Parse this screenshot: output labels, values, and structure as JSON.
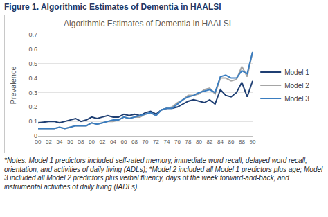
{
  "caption": "Figure 1. Algorithmic Estimates of Dementia in HAALSI",
  "notes": "*Notes. Model 1 predictors included self-rated memory, immediate word recall, delayed word recall, orientation, and activities of daily living (ADLs); *Model 2 included all Model 1 predictors plus age; Model 3 included all Model 2 predictors plus verbal fluency, days of the week forward-and-back, and instrumental activities of daily living (IADLs).",
  "chart_data": {
    "type": "line",
    "title": "Algorithmic Estimates of Dementia in HAALSI",
    "y_label": "Prevalence",
    "x": [
      50,
      51,
      52,
      53,
      54,
      55,
      56,
      57,
      58,
      59,
      60,
      61,
      62,
      63,
      64,
      65,
      66,
      67,
      68,
      69,
      70,
      71,
      72,
      73,
      74,
      75,
      76,
      77,
      78,
      79,
      80,
      81,
      82,
      83,
      84,
      85,
      86,
      87,
      88,
      89,
      90
    ],
    "series": [
      {
        "name": "Model 1",
        "color": "#1f3f73",
        "values": [
          0.09,
          0.095,
          0.1,
          0.1,
          0.09,
          0.1,
          0.11,
          0.12,
          0.1,
          0.11,
          0.13,
          0.12,
          0.13,
          0.14,
          0.13,
          0.13,
          0.15,
          0.14,
          0.15,
          0.14,
          0.16,
          0.17,
          0.15,
          0.18,
          0.19,
          0.19,
          0.2,
          0.22,
          0.24,
          0.25,
          0.24,
          0.23,
          0.25,
          0.22,
          0.32,
          0.28,
          0.27,
          0.3,
          0.37,
          0.27,
          0.38
        ]
      },
      {
        "name": "Model 2",
        "color": "#a5a5a5",
        "values": [
          0.05,
          0.05,
          0.05,
          0.05,
          0.06,
          0.05,
          0.06,
          0.07,
          0.07,
          0.07,
          0.09,
          0.08,
          0.09,
          0.1,
          0.1,
          0.11,
          0.13,
          0.12,
          0.13,
          0.13,
          0.15,
          0.16,
          0.14,
          0.18,
          0.19,
          0.2,
          0.23,
          0.25,
          0.28,
          0.28,
          0.29,
          0.32,
          0.33,
          0.29,
          0.4,
          0.4,
          0.38,
          0.39,
          0.48,
          0.41,
          0.58
        ]
      },
      {
        "name": "Model 3",
        "color": "#3a7dc0",
        "values": [
          0.05,
          0.05,
          0.05,
          0.05,
          0.06,
          0.05,
          0.06,
          0.07,
          0.07,
          0.07,
          0.09,
          0.08,
          0.09,
          0.1,
          0.11,
          0.11,
          0.13,
          0.12,
          0.13,
          0.14,
          0.15,
          0.16,
          0.14,
          0.18,
          0.19,
          0.19,
          0.22,
          0.25,
          0.27,
          0.28,
          0.3,
          0.31,
          0.32,
          0.3,
          0.41,
          0.42,
          0.4,
          0.4,
          0.45,
          0.43,
          0.58
        ]
      }
    ],
    "xlim": [
      50,
      90
    ],
    "xticks": [
      50,
      52,
      54,
      56,
      58,
      60,
      62,
      64,
      66,
      68,
      70,
      72,
      74,
      76,
      78,
      80,
      82,
      84,
      86,
      88,
      90
    ],
    "ylim": [
      0,
      0.7
    ],
    "yticks": [
      0,
      0.1,
      0.2,
      0.3,
      0.4,
      0.5,
      0.6,
      0.7
    ],
    "grid": true,
    "legend": "right"
  }
}
